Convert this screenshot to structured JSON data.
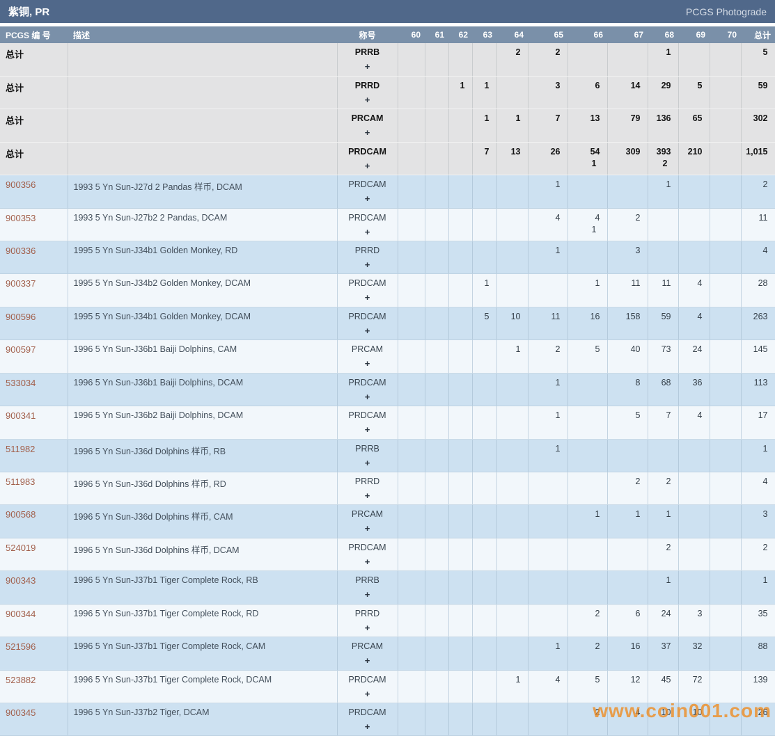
{
  "titlebar": {
    "title": "紫铜, PR",
    "right_link": "PCGS Photograde"
  },
  "watermark": "www.coin001.com",
  "colors": {
    "titlebar_bg": "#50688a",
    "header_bg": "#7a90a9",
    "row_blue": "#cde1f1",
    "row_white": "#f2f7fb",
    "row_gray": "#e3e3e4",
    "link": "#a2604c",
    "watermark_orange": "#ee8c23"
  },
  "table": {
    "headers": {
      "pcgs_no": "PCGS 编 号",
      "description": "描述",
      "designation": "称号",
      "grades": [
        "60",
        "61",
        "62",
        "63",
        "64",
        "65",
        "66",
        "67",
        "68",
        "69",
        "70"
      ],
      "total": "总计"
    },
    "plus": "+",
    "rows": [
      {
        "type": "total",
        "id": "总计",
        "desc": "",
        "desig": "PRRB",
        "grades": [
          "",
          "",
          "",
          "",
          "2",
          "2",
          "",
          "",
          "1",
          "",
          ""
        ],
        "total": "5"
      },
      {
        "type": "total",
        "id": "总计",
        "desc": "",
        "desig": "PRRD",
        "grades": [
          "",
          "",
          "1",
          "1",
          "",
          "3",
          "6",
          "14",
          "29",
          "5",
          ""
        ],
        "total": "59"
      },
      {
        "type": "total",
        "id": "总计",
        "desc": "",
        "desig": "PRCAM",
        "grades": [
          "",
          "",
          "",
          "1",
          "1",
          "7",
          "13",
          "79",
          "136",
          "65",
          ""
        ],
        "total": "302"
      },
      {
        "type": "total",
        "id": "总计",
        "desc": "",
        "desig": "PRDCAM",
        "grades": [
          "",
          "",
          "",
          "7",
          "13",
          "26",
          "54\n1",
          "309",
          "393\n2",
          "210",
          ""
        ],
        "total": "1,015"
      },
      {
        "type": "data",
        "id": "900356",
        "desc": "1993 5 Yn Sun-J27d 2 Pandas 样币, DCAM",
        "desig": "PRDCAM",
        "grades": [
          "",
          "",
          "",
          "",
          "",
          "1",
          "",
          "",
          "1",
          "",
          ""
        ],
        "total": "2"
      },
      {
        "type": "data",
        "id": "900353",
        "desc": "1993 5 Yn Sun-J27b2 2 Pandas, DCAM",
        "desig": "PRDCAM",
        "grades": [
          "",
          "",
          "",
          "",
          "",
          "4",
          "4\n1",
          "2",
          "",
          "",
          ""
        ],
        "total": "11"
      },
      {
        "type": "data",
        "id": "900336",
        "desc": "1995 5 Yn Sun-J34b1 Golden Monkey, RD",
        "desig": "PRRD",
        "grades": [
          "",
          "",
          "",
          "",
          "",
          "1",
          "",
          "3",
          "",
          "",
          ""
        ],
        "total": "4"
      },
      {
        "type": "data",
        "id": "900337",
        "desc": "1995 5 Yn Sun-J34b2 Golden Monkey, DCAM",
        "desig": "PRDCAM",
        "grades": [
          "",
          "",
          "",
          "1",
          "",
          "",
          "1",
          "11",
          "11",
          "4",
          ""
        ],
        "total": "28"
      },
      {
        "type": "data",
        "id": "900596",
        "desc": "1995 5 Yn Sun-J34b1 Golden Monkey, DCAM",
        "desig": "PRDCAM",
        "grades": [
          "",
          "",
          "",
          "5",
          "10",
          "11",
          "16",
          "158",
          "59",
          "4",
          ""
        ],
        "total": "263"
      },
      {
        "type": "data",
        "id": "900597",
        "desc": "1996 5 Yn Sun-J36b1 Baiji Dolphins, CAM",
        "desig": "PRCAM",
        "grades": [
          "",
          "",
          "",
          "",
          "1",
          "2",
          "5",
          "40",
          "73",
          "24",
          ""
        ],
        "total": "145"
      },
      {
        "type": "data",
        "id": "533034",
        "desc": "1996 5 Yn Sun-J36b1 Baiji Dolphins, DCAM",
        "desig": "PRDCAM",
        "grades": [
          "",
          "",
          "",
          "",
          "",
          "1",
          "",
          "8",
          "68",
          "36",
          ""
        ],
        "total": "113"
      },
      {
        "type": "data",
        "id": "900341",
        "desc": "1996 5 Yn Sun-J36b2 Baiji Dolphins, DCAM",
        "desig": "PRDCAM",
        "grades": [
          "",
          "",
          "",
          "",
          "",
          "1",
          "",
          "5",
          "7",
          "4",
          ""
        ],
        "total": "17"
      },
      {
        "type": "data",
        "id": "511982",
        "desc": "1996 5 Yn Sun-J36d Dolphins 样币, RB",
        "desig": "PRRB",
        "grades": [
          "",
          "",
          "",
          "",
          "",
          "1",
          "",
          "",
          "",
          "",
          ""
        ],
        "total": "1"
      },
      {
        "type": "data",
        "id": "511983",
        "desc": "1996 5 Yn Sun-J36d Dolphins 样币, RD",
        "desig": "PRRD",
        "grades": [
          "",
          "",
          "",
          "",
          "",
          "",
          "",
          "2",
          "2",
          "",
          ""
        ],
        "total": "4"
      },
      {
        "type": "data",
        "id": "900568",
        "desc": "1996 5 Yn Sun-J36d Dolphins 样币, CAM",
        "desig": "PRCAM",
        "grades": [
          "",
          "",
          "",
          "",
          "",
          "",
          "1",
          "1",
          "1",
          "",
          ""
        ],
        "total": "3"
      },
      {
        "type": "data",
        "id": "524019",
        "desc": "1996 5 Yn Sun-J36d Dolphins 样币, DCAM",
        "desig": "PRDCAM",
        "grades": [
          "",
          "",
          "",
          "",
          "",
          "",
          "",
          "",
          "2",
          "",
          ""
        ],
        "total": "2"
      },
      {
        "type": "data",
        "id": "900343",
        "desc": "1996 5 Yn Sun-J37b1 Tiger Complete Rock, RB",
        "desig": "PRRB",
        "grades": [
          "",
          "",
          "",
          "",
          "",
          "",
          "",
          "",
          "1",
          "",
          ""
        ],
        "total": "1"
      },
      {
        "type": "data",
        "id": "900344",
        "desc": "1996 5 Yn Sun-J37b1 Tiger Complete Rock, RD",
        "desig": "PRRD",
        "grades": [
          "",
          "",
          "",
          "",
          "",
          "",
          "2",
          "6",
          "24",
          "3",
          ""
        ],
        "total": "35"
      },
      {
        "type": "data",
        "id": "521596",
        "desc": "1996 5 Yn Sun-J37b1 Tiger Complete Rock, CAM",
        "desig": "PRCAM",
        "grades": [
          "",
          "",
          "",
          "",
          "",
          "1",
          "2",
          "16",
          "37",
          "32",
          ""
        ],
        "total": "88"
      },
      {
        "type": "data",
        "id": "523882",
        "desc": "1996 5 Yn Sun-J37b1 Tiger Complete Rock, DCAM",
        "desig": "PRDCAM",
        "grades": [
          "",
          "",
          "",
          "",
          "1",
          "4",
          "5",
          "12",
          "45",
          "72",
          ""
        ],
        "total": "139"
      },
      {
        "type": "data",
        "id": "900345",
        "desc": "1996 5 Yn Sun-J37b2 Tiger, DCAM",
        "desig": "PRDCAM",
        "grades": [
          "",
          "",
          "",
          "",
          "",
          "",
          "2",
          "4",
          "10",
          "10",
          ""
        ],
        "total": "26"
      }
    ]
  }
}
